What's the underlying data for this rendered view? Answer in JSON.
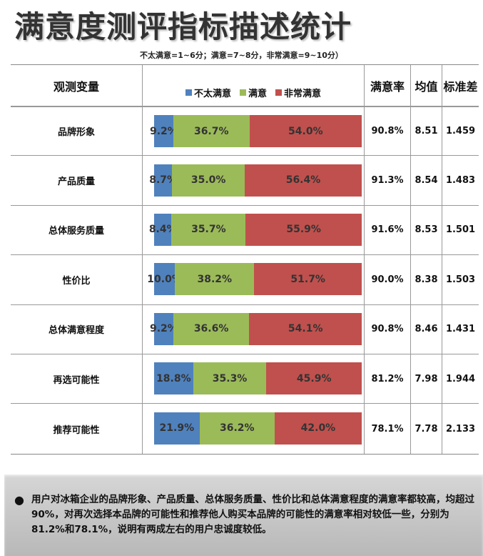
{
  "title": "满意度测评指标描述统计",
  "subtitle": "不太满意=1~6分；满意=7~8分，非常满意=9~10分）",
  "headers": {
    "variable": "观测变量",
    "rate": "满意率",
    "mean": "均值",
    "sd": "标准差"
  },
  "colors": {
    "not_satisfied": "#4f81bd",
    "satisfied": "#9bbb59",
    "very_satisfied": "#c0504d"
  },
  "chart_data": {
    "type": "bar",
    "stacked": true,
    "orientation": "horizontal",
    "categories": [
      "品牌形象",
      "产品质量",
      "总体服务质量",
      "性价比",
      "总体满意程度",
      "再选可能性",
      "推荐可能性"
    ],
    "series": [
      {
        "name": "不太满意",
        "values": [
          9.2,
          8.7,
          8.4,
          10.0,
          9.2,
          18.8,
          21.9
        ],
        "labels": [
          "9.2%",
          "8.7%",
          "8.4%",
          "10.0%",
          "9.2%",
          "18.8%",
          "21.9%"
        ]
      },
      {
        "name": "满意",
        "values": [
          36.7,
          35.0,
          35.7,
          38.2,
          36.6,
          35.3,
          36.2
        ],
        "labels": [
          "36.7%",
          "35.0%",
          "35.7%",
          "38.2%",
          "36.6%",
          "35.3%",
          "36.2%"
        ]
      },
      {
        "name": "非常满意",
        "values": [
          54.0,
          56.4,
          55.9,
          51.7,
          54.1,
          45.9,
          42.0
        ],
        "labels": [
          "54.0%",
          "56.4%",
          "55.9%",
          "51.7%",
          "54.1%",
          "45.9%",
          "42.0%"
        ]
      }
    ],
    "legend_position": "top",
    "table": {
      "rate": [
        "90.8%",
        "91.3%",
        "91.6%",
        "90.0%",
        "90.8%",
        "81.2%",
        "78.1%"
      ],
      "mean": [
        "8.51",
        "8.54",
        "8.53",
        "8.38",
        "8.46",
        "7.98",
        "7.78"
      ],
      "sd": [
        "1.459",
        "1.483",
        "1.501",
        "1.503",
        "1.431",
        "1.944",
        "2.133"
      ]
    }
  },
  "note": {
    "bullet": "●",
    "text": "用户对冰箱企业的品牌形象、产品质量、总体服务质量、性价比和总体满意程度的满意率都较高，均超过90%，对再次选择本品牌的可能性和推荐他人购买本品牌的可能性的满意率相对较低一些，分别为81.2%和78.1%，说明有两成左右的用户忠诚度较低。"
  }
}
